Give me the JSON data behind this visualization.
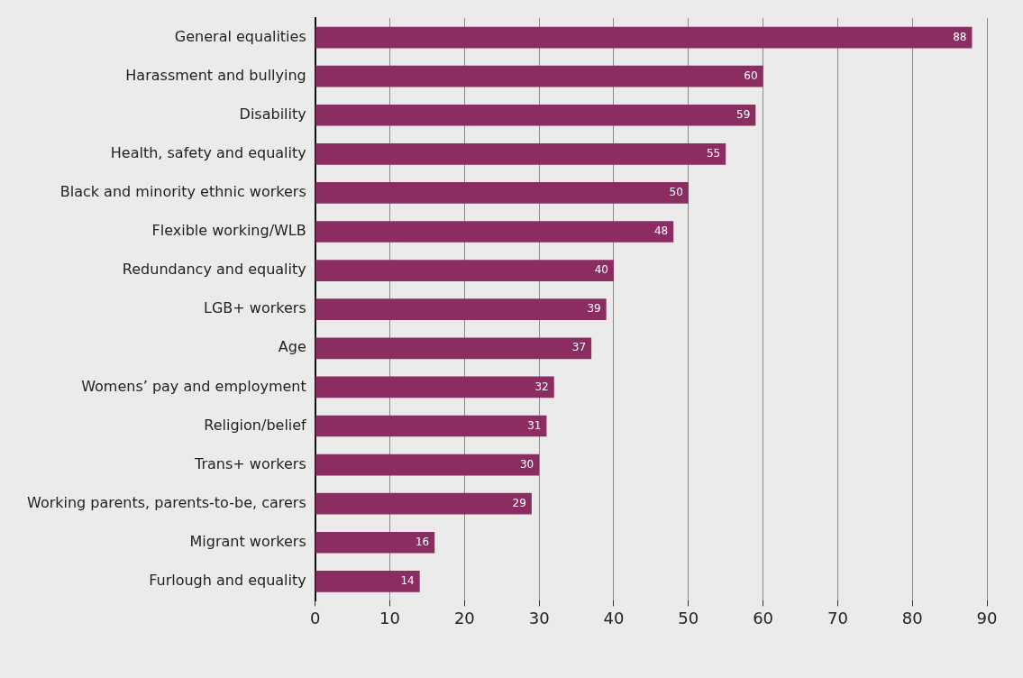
{
  "chart_data": {
    "type": "bar",
    "orientation": "horizontal",
    "categories": [
      "General equalities",
      "Harassment and bullying",
      "Disability",
      "Health, safety and equality",
      "Black and minority ethnic workers",
      "Flexible working/WLB",
      "Redundancy and equality",
      "LGB+ workers",
      "Age",
      "Womens’ pay and employment",
      "Religion/belief",
      "Trans+ workers",
      "Working parents, parents-to-be, carers",
      "Migrant workers",
      "Furlough and equality"
    ],
    "values": [
      88,
      60,
      59,
      55,
      50,
      48,
      40,
      39,
      37,
      32,
      31,
      30,
      29,
      16,
      14
    ],
    "color": "#8c2d62",
    "xlim": [
      0,
      90
    ],
    "xticks": [
      0,
      10,
      20,
      30,
      40,
      50,
      60,
      70,
      80,
      90
    ],
    "grid": "x",
    "data_labels": true,
    "legend": false
  }
}
